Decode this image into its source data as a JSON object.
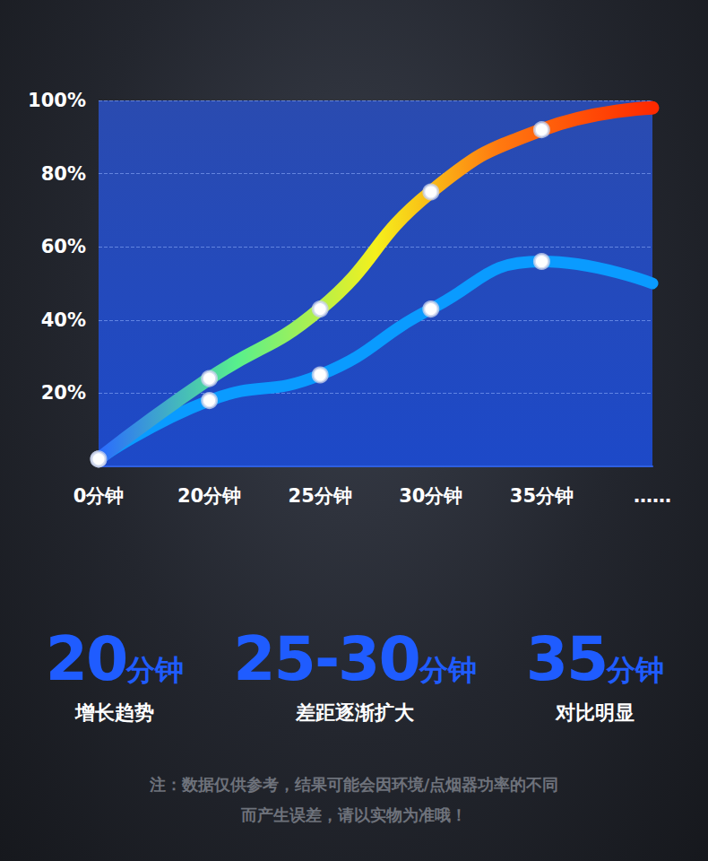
{
  "chart_data": {
    "type": "line",
    "categories": [
      "0分钟",
      "20分钟",
      "25分钟",
      "30分钟",
      "35分钟",
      "……"
    ],
    "series": [
      {
        "color": "#ff2a00",
        "values": [
          2,
          24,
          43,
          75,
          92,
          98
        ],
        "marker": "circle"
      },
      {
        "color": "#0a9bff",
        "values": [
          2,
          18,
          25,
          43,
          56,
          50
        ],
        "marker": "circle"
      }
    ],
    "ylim": [
      0,
      100
    ],
    "yticks": [
      {
        "value": 20,
        "label": "20%"
      },
      {
        "value": 40,
        "label": "40%"
      },
      {
        "value": 60,
        "label": "60%"
      },
      {
        "value": 80,
        "label": "80%"
      },
      {
        "value": 100,
        "label": "100%"
      }
    ],
    "grid": true
  },
  "stats": [
    {
      "number": "20",
      "unit": "分钟",
      "caption": "增长趋势"
    },
    {
      "number": "25-30",
      "unit": "分钟",
      "caption": "差距逐渐扩大"
    },
    {
      "number": "35",
      "unit": "分钟",
      "caption": "对比明显"
    }
  ],
  "note": [
    "注：数据仅供参考，结果可能会因环境/点烟器功率的不同",
    "而产生误差，请以实物为准哦！"
  ]
}
